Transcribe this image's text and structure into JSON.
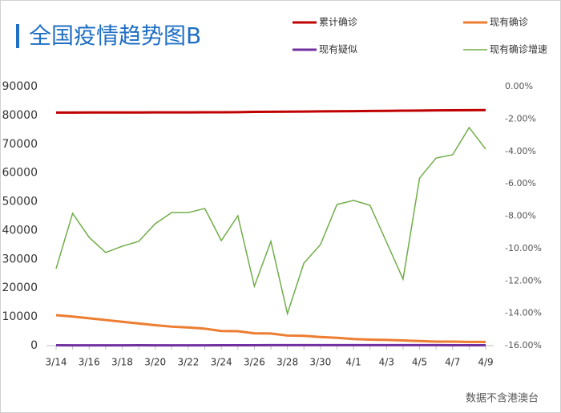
{
  "chart_data": {
    "type": "line",
    "title": "全国疫情趋势图B",
    "note": "数据不含港澳台",
    "categories": [
      "3/14",
      null,
      "3/16",
      null,
      "3/18",
      null,
      "3/20",
      null,
      "3/22",
      null,
      "3/24",
      null,
      "3/26",
      null,
      "3/28",
      null,
      "3/30",
      null,
      "4/1",
      null,
      "4/3",
      null,
      "4/5",
      null,
      "4/7",
      null,
      "4/9"
    ],
    "series": [
      {
        "name": "累计确诊",
        "color": "#c00000",
        "values": [
          80980,
          80990,
          81000,
          81010,
          81020,
          81030,
          81040,
          81050,
          81060,
          81070,
          81080,
          81120,
          81230,
          81250,
          81290,
          81340,
          81390,
          81440,
          81470,
          81520,
          81560,
          81640,
          81690,
          81730,
          81770,
          81800,
          81850
        ]
      },
      {
        "name": "现有确诊",
        "color": "#ed7d31",
        "values": [
          10600,
          10100,
          9500,
          8900,
          8300,
          7700,
          7100,
          6600,
          6300,
          5900,
          5100,
          5000,
          4300,
          4200,
          3500,
          3400,
          3000,
          2700,
          2300,
          2100,
          2000,
          1800,
          1600,
          1400,
          1400,
          1300,
          1300
        ]
      },
      {
        "name": "现有疑似",
        "color": "#7030a0",
        "values": [
          130,
          120,
          110,
          110,
          120,
          130,
          120,
          110,
          100,
          110,
          130,
          140,
          150,
          160,
          180,
          170,
          160,
          170,
          180,
          170,
          160,
          170,
          180,
          160,
          150,
          140,
          130
        ]
      },
      {
        "name": "现有确诊增速",
        "color": "#70ad47",
        "axis": "y2",
        "values": [
          -11.24,
          -7.83,
          -9.31,
          -10.25,
          -9.86,
          -9.56,
          -8.47,
          -7.78,
          -7.78,
          -7.53,
          -9.51,
          -7.98,
          -12.33,
          -9.56,
          -14.02,
          -10.9,
          -9.76,
          -7.28,
          -7.03,
          -7.33,
          -9.61,
          -11.89,
          -5.65,
          -4.41,
          -4.21,
          -2.53,
          -3.86
        ]
      }
    ],
    "ylim": [
      0,
      90000
    ],
    "yticks": [
      0,
      10000,
      20000,
      30000,
      40000,
      50000,
      60000,
      70000,
      80000,
      90000
    ],
    "y2lim": [
      -16,
      0
    ],
    "y2ticks": [
      {
        "value": 0,
        "label": "0.00%"
      },
      {
        "value": -2,
        "label": "-2.00%"
      },
      {
        "value": -4,
        "label": "-4.00%"
      },
      {
        "value": -6,
        "label": "-6.00%"
      },
      {
        "value": -8,
        "label": "-8.00%"
      },
      {
        "value": -10,
        "label": "-10.00%"
      },
      {
        "value": -12,
        "label": "-12.00%"
      },
      {
        "value": -14,
        "label": "-14.00%"
      },
      {
        "value": -16,
        "label": "-16.00%"
      }
    ]
  }
}
